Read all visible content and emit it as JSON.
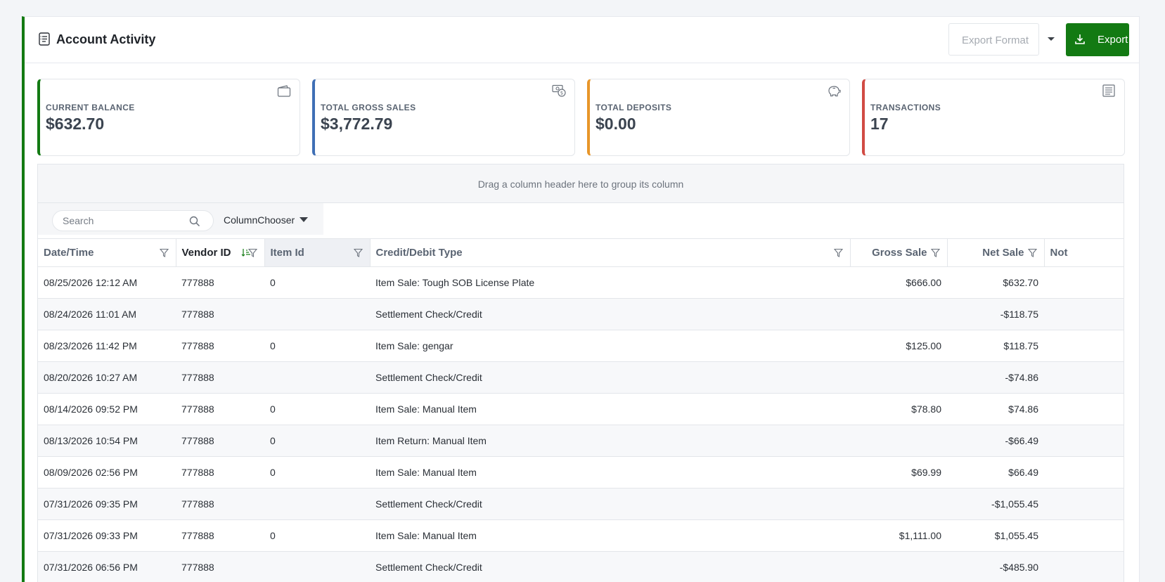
{
  "header": {
    "title": "Account Activity",
    "export_format_placeholder": "Export Format",
    "export_label": "Export",
    "accent_color": "#137a13"
  },
  "cards": [
    {
      "label": "CURRENT BALANCE",
      "value": "$632.70",
      "icon": "wallet-icon",
      "color": "#137a13"
    },
    {
      "label": "TOTAL GROSS SALES",
      "value": "$3,772.79",
      "icon": "money-icon",
      "color": "#3f6fb5"
    },
    {
      "label": "TOTAL DEPOSITS",
      "value": "$0.00",
      "icon": "piggy-bank-icon",
      "color": "#e8962a"
    },
    {
      "label": "TRANSACTIONS",
      "value": "17",
      "icon": "list-icon",
      "color": "#d14b44"
    }
  ],
  "grid": {
    "group_panel_text": "Drag a column header here to group its column",
    "search_placeholder": "Search",
    "column_chooser_label": "ColumnChooser",
    "columns": [
      "Date/Time",
      "Vendor ID",
      "Item Id",
      "Credit/Debit Type",
      "Gross Sale",
      "Net Sale",
      "Not"
    ],
    "rows": [
      [
        "08/25/2026 12:12 AM",
        "777888",
        "0",
        "Item Sale: Tough SOB License Plate",
        "$666.00",
        "$632.70"
      ],
      [
        "08/24/2026 11:01 AM",
        "777888",
        "",
        "Settlement Check/Credit",
        "",
        "-$118.75"
      ],
      [
        "08/23/2026 11:42 PM",
        "777888",
        "0",
        "Item Sale: gengar",
        "$125.00",
        "$118.75"
      ],
      [
        "08/20/2026 10:27 AM",
        "777888",
        "",
        "Settlement Check/Credit",
        "",
        "-$74.86"
      ],
      [
        "08/14/2026 09:52 PM",
        "777888",
        "0",
        "Item Sale: Manual Item",
        "$78.80",
        "$74.86"
      ],
      [
        "08/13/2026 10:54 PM",
        "777888",
        "0",
        "Item Return: Manual Item",
        "",
        "-$66.49"
      ],
      [
        "08/09/2026 02:56 PM",
        "777888",
        "0",
        "Item Sale: Manual Item",
        "$69.99",
        "$66.49"
      ],
      [
        "07/31/2026 09:35 PM",
        "777888",
        "",
        "Settlement Check/Credit",
        "",
        "-$1,055.45"
      ],
      [
        "07/31/2026 09:33 PM",
        "777888",
        "0",
        "Item Sale: Manual Item",
        "$1,111.00",
        "$1,055.45"
      ],
      [
        "07/31/2026 06:56 PM",
        "777888",
        "",
        "Settlement Check/Credit",
        "",
        "-$485.90"
      ]
    ]
  }
}
